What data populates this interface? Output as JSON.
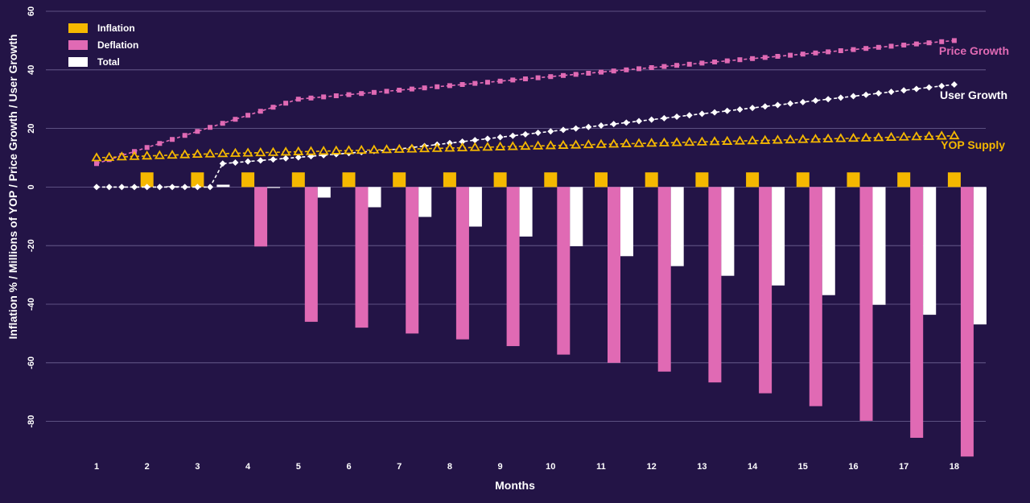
{
  "chart_data": {
    "type": "bar",
    "title": "",
    "xlabel": "Months",
    "ylabel": "Inflation % / Millions of YOP / Price Growth / User Growth",
    "ylim": [
      -88,
      60
    ],
    "yticks": [
      -80,
      -60,
      -40,
      -20,
      0,
      20,
      40,
      60
    ],
    "categories": [
      "1",
      "2",
      "3",
      "4",
      "5",
      "6",
      "7",
      "8",
      "9",
      "10",
      "11",
      "12",
      "13",
      "14",
      "15",
      "16",
      "17",
      "18"
    ],
    "grid": true,
    "legend": {
      "placement": "top-left",
      "entries": [
        {
          "name": "Inflation",
          "color": "#F5B800"
        },
        {
          "name": "Deflation",
          "color": "#E06AB4"
        },
        {
          "name": "Total",
          "color": "#FFFFFF"
        }
      ]
    },
    "series": [
      {
        "name": "Inflation",
        "kind": "bar",
        "color": "#F5B800",
        "values": [
          0,
          5,
          5,
          5,
          5,
          5,
          5,
          5,
          5,
          5,
          5,
          5,
          5,
          5,
          5,
          5,
          5,
          5
        ]
      },
      {
        "name": "Deflation",
        "kind": "bar",
        "color": "#E06AB4",
        "values": [
          0,
          0,
          0,
          -20.3,
          -46,
          -48,
          -50,
          -52,
          -54.3,
          -57.2,
          -60,
          -63,
          -66.7,
          -70.4,
          -74.8,
          -79.8,
          -85.6,
          -92
        ]
      },
      {
        "name": "Total",
        "kind": "bar",
        "color": "#FFFFFF",
        "values": [
          0,
          0.3,
          0.8,
          -0.3,
          -3.6,
          -6.9,
          -10.2,
          -13.5,
          -16.9,
          -20.2,
          -23.6,
          -27,
          -30.3,
          -33.6,
          -36.9,
          -40.2,
          -43.6,
          -46.9
        ]
      },
      {
        "name": "Price Growth",
        "kind": "line",
        "color": "#E06AB4",
        "marker": "square",
        "points_per_month": 4,
        "knots": [
          [
            0,
            8
          ],
          [
            16,
            30
          ],
          [
            68,
            50
          ]
        ]
      },
      {
        "name": "User Growth",
        "kind": "line",
        "color": "#FFFFFF",
        "marker": "diamond",
        "points_per_month": 4,
        "knots": [
          [
            0,
            0
          ],
          [
            9,
            0
          ],
          [
            10,
            8
          ],
          [
            24,
            13
          ],
          [
            68,
            35
          ]
        ]
      },
      {
        "name": "YOP Supply",
        "kind": "line",
        "color": "#F5B800",
        "marker": "triangle",
        "points_per_month": 4,
        "knots": [
          [
            0,
            10
          ],
          [
            8,
            11.2
          ],
          [
            68,
            17.5
          ]
        ]
      }
    ]
  },
  "labels": {
    "price_growth": "Price Growth",
    "user_growth": "User Growth",
    "yop_supply": "YOP Supply"
  }
}
